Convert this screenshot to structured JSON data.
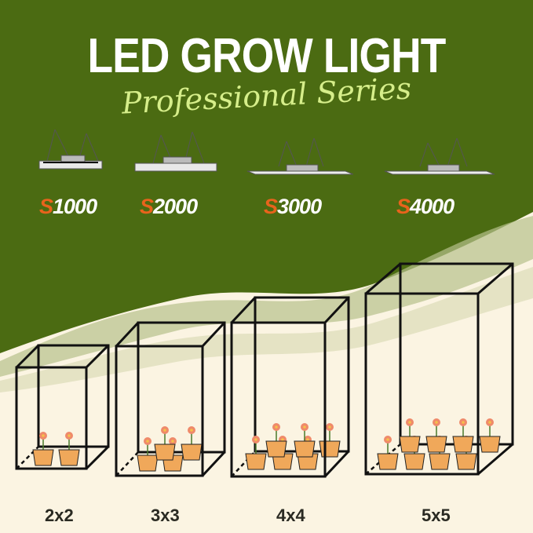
{
  "header": {
    "title": "LED GROW LIGHT",
    "subtitle": "Professional Series"
  },
  "models": [
    {
      "prefix": "S",
      "number": "1000"
    },
    {
      "prefix": "S",
      "number": "2000"
    },
    {
      "prefix": "S",
      "number": "3000"
    },
    {
      "prefix": "S",
      "number": "4000"
    }
  ],
  "tent_sizes": [
    "2x2",
    "3x3",
    "4x4",
    "5x5"
  ],
  "colors": {
    "green": "#4b6b12",
    "cream": "#fbf4e2",
    "accent_orange": "#e8631c",
    "script_green": "#d6ee8a"
  }
}
